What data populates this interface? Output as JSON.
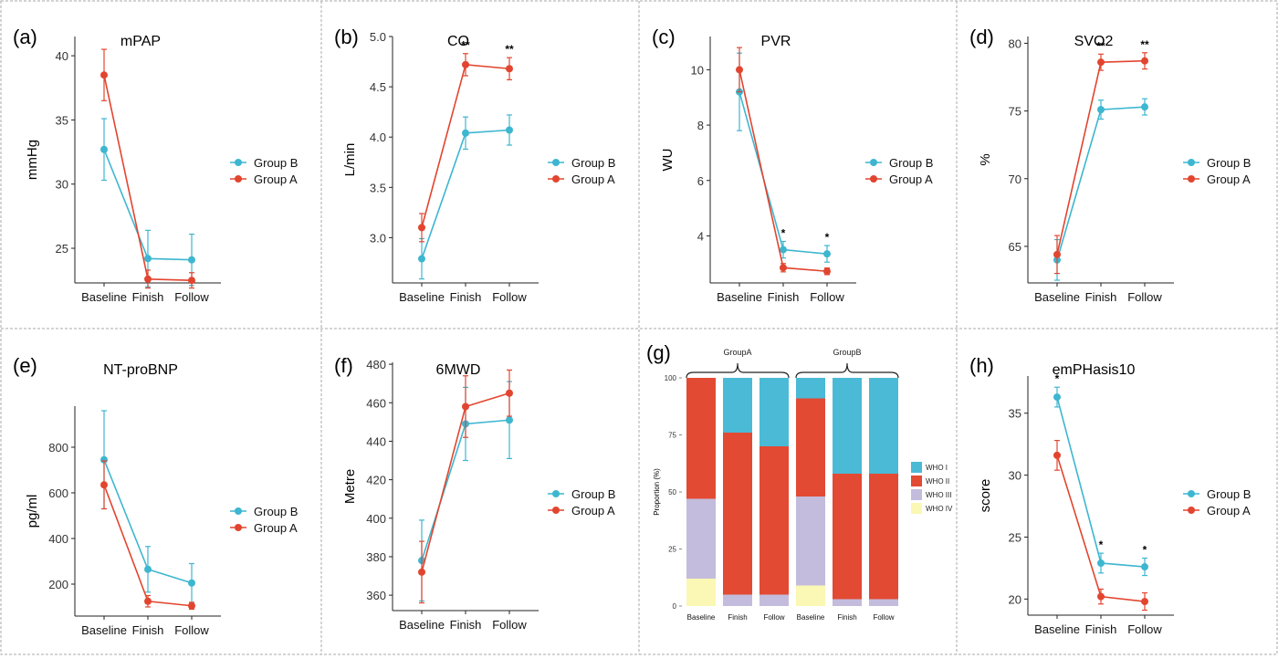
{
  "colors": {
    "group_b": "#3db6d0",
    "group_a": "#e2452f",
    "axis": "#222222",
    "border": "#aaaaaa",
    "who_i": "#4bbad6",
    "who_ii": "#e24a33",
    "who_iii": "#c3bcdc",
    "who_iv": "#fbf7b4"
  },
  "chart_data": [
    {
      "panel": "(a)",
      "type": "line",
      "title": "mPAP",
      "ylabel": "mmHg",
      "xlabel": "",
      "categories": [
        "Baseline",
        "Finish",
        "Follow"
      ],
      "ylim": [
        22.3,
        41.5
      ],
      "yticks": [
        25,
        30,
        35,
        40
      ],
      "series": [
        {
          "name": "Group B",
          "values": [
            32.7,
            24.2,
            24.1
          ],
          "err": [
            2.4,
            2.2,
            2.0
          ]
        },
        {
          "name": "Group A",
          "values": [
            38.5,
            22.6,
            22.5
          ],
          "err": [
            2.0,
            0.7,
            0.6
          ]
        }
      ],
      "significance": [
        "",
        "",
        ""
      ],
      "legend": "right"
    },
    {
      "panel": "(b)",
      "type": "line",
      "title": "CO",
      "ylabel": "L/min",
      "xlabel": "",
      "categories": [
        "Baseline",
        "Finish",
        "Follow"
      ],
      "ylim": [
        2.55,
        5.0
      ],
      "yticks": [
        3.0,
        3.5,
        4.0,
        4.5,
        5.0
      ],
      "series": [
        {
          "name": "Group B",
          "values": [
            2.79,
            4.04,
            4.07
          ],
          "err": [
            0.2,
            0.16,
            0.15
          ]
        },
        {
          "name": "Group A",
          "values": [
            3.1,
            4.72,
            4.68
          ],
          "err": [
            0.14,
            0.11,
            0.11
          ]
        }
      ],
      "significance": [
        "",
        "**",
        "**"
      ],
      "legend": "right"
    },
    {
      "panel": "(c)",
      "type": "line",
      "title": "PVR",
      "ylabel": "WU",
      "xlabel": "",
      "categories": [
        "Baseline",
        "Finish",
        "Follow"
      ],
      "ylim": [
        2.3,
        11.2
      ],
      "yticks": [
        4,
        6,
        8,
        10
      ],
      "series": [
        {
          "name": "Group B",
          "values": [
            9.2,
            3.5,
            3.35
          ],
          "err": [
            1.4,
            0.3,
            0.3
          ]
        },
        {
          "name": "Group A",
          "values": [
            10.0,
            2.85,
            2.72
          ],
          "err": [
            0.8,
            0.15,
            0.12
          ]
        }
      ],
      "significance": [
        "",
        "*",
        "*"
      ],
      "legend": "right"
    },
    {
      "panel": "(d)",
      "type": "line",
      "title": "SVO2",
      "ylabel": "%",
      "xlabel": "",
      "categories": [
        "Baseline",
        "Finish",
        "Follow"
      ],
      "ylim": [
        62.3,
        80.5
      ],
      "yticks": [
        65,
        70,
        75,
        80
      ],
      "series": [
        {
          "name": "Group B",
          "values": [
            64.0,
            75.1,
            75.3
          ],
          "err": [
            1.5,
            0.7,
            0.6
          ]
        },
        {
          "name": "Group A",
          "values": [
            64.4,
            78.6,
            78.7
          ],
          "err": [
            1.4,
            0.6,
            0.6
          ]
        }
      ],
      "significance": [
        "",
        "**",
        "**"
      ],
      "legend": "right"
    },
    {
      "panel": "(e)",
      "type": "line",
      "title": "NT-proBNP",
      "ylabel": "pg/ml",
      "xlabel": "",
      "categories": [
        "Baseline",
        "Finish",
        "Follow"
      ],
      "ylim": [
        60,
        980
      ],
      "yticks": [
        200,
        400,
        600,
        800
      ],
      "series": [
        {
          "name": "Group B",
          "values": [
            745,
            265,
            205
          ],
          "err": [
            215,
            100,
            85
          ]
        },
        {
          "name": "Group A",
          "values": [
            635,
            125,
            105
          ],
          "err": [
            105,
            25,
            15
          ]
        }
      ],
      "significance": [
        "",
        "",
        ""
      ],
      "legend": "right"
    },
    {
      "panel": "(f)",
      "type": "line",
      "title": "6MWD",
      "ylabel": "Metre",
      "xlabel": "",
      "categories": [
        "Baseline",
        "Finish",
        "Follow"
      ],
      "ylim": [
        352,
        481
      ],
      "yticks": [
        360,
        380,
        400,
        420,
        440,
        460,
        480
      ],
      "series": [
        {
          "name": "Group B",
          "values": [
            378,
            449,
            451
          ],
          "err": [
            21,
            19,
            20
          ]
        },
        {
          "name": "Group A",
          "values": [
            372,
            458,
            465
          ],
          "err": [
            16,
            16,
            12
          ]
        }
      ],
      "significance": [
        "",
        "",
        ""
      ],
      "legend": "right"
    },
    {
      "panel": "(g)",
      "type": "bar",
      "stacked": true,
      "title": "",
      "ylabel": "Proportion (%)",
      "xlabel": "",
      "categories": [
        "Baseline",
        "Finish",
        "Follow",
        "Baseline",
        "Finish",
        "Follow"
      ],
      "groups": [
        {
          "label": "GroupA",
          "span": [
            0,
            2
          ]
        },
        {
          "label": "GroupB",
          "span": [
            3,
            5
          ]
        }
      ],
      "yticks": [
        0,
        25,
        50,
        75,
        100
      ],
      "ylim": [
        0,
        100
      ],
      "series": [
        {
          "name": "WHO IV",
          "values": [
            12,
            0,
            0,
            9,
            0,
            0
          ]
        },
        {
          "name": "WHO III",
          "values": [
            35,
            5,
            5,
            39,
            3,
            3
          ]
        },
        {
          "name": "WHO II",
          "values": [
            53,
            71,
            65,
            43,
            55,
            55
          ]
        },
        {
          "name": "WHO I",
          "values": [
            0,
            24,
            30,
            9,
            42,
            42
          ]
        }
      ],
      "legend_order": [
        "WHO I",
        "WHO II",
        "WHO III",
        "WHO IV"
      ],
      "legend": "right"
    },
    {
      "panel": "(h)",
      "type": "line",
      "title": "emPHasis10",
      "ylabel": "score",
      "xlabel": "",
      "categories": [
        "Baseline",
        "Finish",
        "Follow"
      ],
      "ylim": [
        18.7,
        38.0
      ],
      "yticks": [
        20,
        25,
        30,
        35
      ],
      "series": [
        {
          "name": "Group B",
          "values": [
            36.3,
            22.9,
            22.6
          ],
          "err": [
            0.8,
            0.8,
            0.7
          ]
        },
        {
          "name": "Group A",
          "values": [
            31.6,
            20.2,
            19.8
          ],
          "err": [
            1.2,
            0.6,
            0.7
          ]
        }
      ],
      "significance": [
        "*",
        "*",
        "*"
      ],
      "legend": "right"
    }
  ]
}
